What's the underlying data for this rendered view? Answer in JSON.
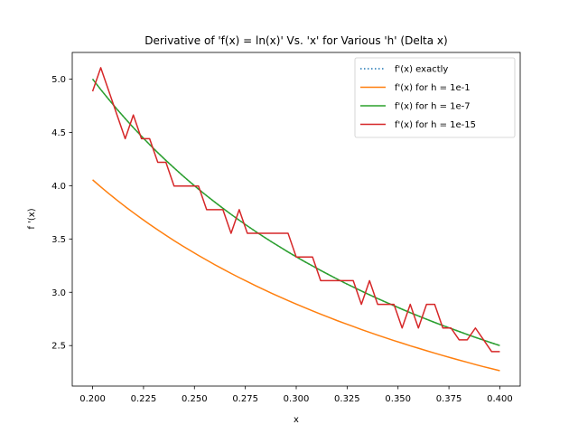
{
  "chart_data": {
    "type": "line",
    "title": "Derivative of 'f(x) = ln(x)' Vs. 'x' for Various 'h' (Delta x)",
    "xlabel": "x",
    "ylabel": "f '(x)",
    "xlim": [
      0.19,
      0.41
    ],
    "ylim": [
      2.12,
      5.25
    ],
    "xticks": [
      0.2,
      0.225,
      0.25,
      0.275,
      0.3,
      0.325,
      0.35,
      0.375,
      0.4
    ],
    "xtick_labels": [
      "0.200",
      "0.225",
      "0.250",
      "0.275",
      "0.300",
      "0.325",
      "0.350",
      "0.375",
      "0.400"
    ],
    "yticks": [
      2.5,
      3.0,
      3.5,
      4.0,
      4.5,
      5.0
    ],
    "ytick_labels": [
      "2.5",
      "3.0",
      "3.5",
      "4.0",
      "4.5",
      "5.0"
    ],
    "grid": false,
    "legend_position": "top-right",
    "series": [
      {
        "name": "f'(x) exactly",
        "color": "#1f77b4",
        "style": "dotted",
        "x": [
          0.2,
          0.204,
          0.208,
          0.212,
          0.216,
          0.22,
          0.224,
          0.228,
          0.232,
          0.236,
          0.24,
          0.244,
          0.248,
          0.252,
          0.256,
          0.26,
          0.264,
          0.268,
          0.272,
          0.276,
          0.28,
          0.284,
          0.288,
          0.292,
          0.296,
          0.3,
          0.304,
          0.308,
          0.312,
          0.316,
          0.32,
          0.324,
          0.328,
          0.332,
          0.336,
          0.34,
          0.344,
          0.348,
          0.352,
          0.356,
          0.36,
          0.364,
          0.368,
          0.372,
          0.376,
          0.38,
          0.384,
          0.388,
          0.392,
          0.396,
          0.4
        ],
        "y": [
          5.0,
          4.902,
          4.808,
          4.717,
          4.63,
          4.545,
          4.464,
          4.386,
          4.31,
          4.237,
          4.167,
          4.098,
          4.032,
          3.968,
          3.906,
          3.846,
          3.788,
          3.731,
          3.676,
          3.623,
          3.571,
          3.521,
          3.472,
          3.425,
          3.378,
          3.333,
          3.289,
          3.247,
          3.205,
          3.165,
          3.125,
          3.086,
          3.049,
          3.012,
          2.976,
          2.941,
          2.907,
          2.874,
          2.841,
          2.809,
          2.778,
          2.747,
          2.717,
          2.688,
          2.66,
          2.632,
          2.604,
          2.577,
          2.551,
          2.525,
          2.5
        ]
      },
      {
        "name": "f'(x) for h = 1e-1",
        "color": "#ff7f0e",
        "style": "solid",
        "x": [
          0.2,
          0.204,
          0.208,
          0.212,
          0.216,
          0.22,
          0.224,
          0.228,
          0.232,
          0.236,
          0.24,
          0.244,
          0.248,
          0.252,
          0.256,
          0.26,
          0.264,
          0.268,
          0.272,
          0.276,
          0.28,
          0.284,
          0.288,
          0.292,
          0.296,
          0.3,
          0.304,
          0.308,
          0.312,
          0.316,
          0.32,
          0.324,
          0.328,
          0.332,
          0.336,
          0.34,
          0.344,
          0.348,
          0.352,
          0.356,
          0.36,
          0.364,
          0.368,
          0.372,
          0.376,
          0.38,
          0.384,
          0.388,
          0.392,
          0.396,
          0.4
        ],
        "y": [
          4.055,
          3.989,
          3.925,
          3.864,
          3.804,
          3.747,
          3.691,
          3.637,
          3.585,
          3.534,
          3.485,
          3.437,
          3.391,
          3.346,
          3.302,
          3.259,
          3.218,
          3.177,
          3.138,
          3.1,
          3.062,
          3.026,
          2.99,
          2.956,
          2.922,
          2.889,
          2.857,
          2.826,
          2.795,
          2.765,
          2.735,
          2.707,
          2.679,
          2.651,
          2.624,
          2.598,
          2.572,
          2.547,
          2.523,
          2.498,
          2.475,
          2.452,
          2.429,
          2.407,
          2.385,
          2.364,
          2.343,
          2.322,
          2.302,
          2.283,
          2.264
        ]
      },
      {
        "name": "f'(x) for h = 1e-7",
        "color": "#2ca02c",
        "style": "solid",
        "x": [
          0.2,
          0.204,
          0.208,
          0.212,
          0.216,
          0.22,
          0.224,
          0.228,
          0.232,
          0.236,
          0.24,
          0.244,
          0.248,
          0.252,
          0.256,
          0.26,
          0.264,
          0.268,
          0.272,
          0.276,
          0.28,
          0.284,
          0.288,
          0.292,
          0.296,
          0.3,
          0.304,
          0.308,
          0.312,
          0.316,
          0.32,
          0.324,
          0.328,
          0.332,
          0.336,
          0.34,
          0.344,
          0.348,
          0.352,
          0.356,
          0.36,
          0.364,
          0.368,
          0.372,
          0.376,
          0.38,
          0.384,
          0.388,
          0.392,
          0.396,
          0.4
        ],
        "y": [
          5.0,
          4.902,
          4.808,
          4.717,
          4.63,
          4.545,
          4.464,
          4.386,
          4.31,
          4.237,
          4.167,
          4.098,
          4.032,
          3.968,
          3.906,
          3.846,
          3.788,
          3.731,
          3.676,
          3.623,
          3.571,
          3.521,
          3.472,
          3.425,
          3.378,
          3.333,
          3.289,
          3.247,
          3.205,
          3.165,
          3.125,
          3.086,
          3.049,
          3.012,
          2.976,
          2.941,
          2.907,
          2.874,
          2.841,
          2.809,
          2.778,
          2.747,
          2.717,
          2.688,
          2.66,
          2.632,
          2.604,
          2.577,
          2.551,
          2.525,
          2.5
        ]
      },
      {
        "name": "f'(x) for h = 1e-15",
        "color": "#d62728",
        "style": "solid",
        "x": [
          0.2,
          0.204,
          0.208,
          0.212,
          0.216,
          0.22,
          0.224,
          0.228,
          0.232,
          0.236,
          0.24,
          0.244,
          0.248,
          0.252,
          0.256,
          0.26,
          0.264,
          0.268,
          0.272,
          0.276,
          0.28,
          0.284,
          0.288,
          0.292,
          0.296,
          0.3,
          0.304,
          0.308,
          0.312,
          0.316,
          0.32,
          0.324,
          0.328,
          0.332,
          0.336,
          0.34,
          0.344,
          0.348,
          0.352,
          0.356,
          0.36,
          0.364,
          0.368,
          0.372,
          0.376,
          0.38,
          0.384,
          0.388,
          0.392,
          0.396,
          0.4
        ],
        "y": [
          4.885,
          5.107,
          4.885,
          4.663,
          4.441,
          4.663,
          4.441,
          4.441,
          4.219,
          4.219,
          3.997,
          3.997,
          3.997,
          3.997,
          3.775,
          3.775,
          3.775,
          3.553,
          3.775,
          3.553,
          3.553,
          3.553,
          3.553,
          3.553,
          3.553,
          3.331,
          3.331,
          3.331,
          3.109,
          3.109,
          3.109,
          3.109,
          3.109,
          2.887,
          3.109,
          2.887,
          2.887,
          2.887,
          2.665,
          2.887,
          2.665,
          2.887,
          2.887,
          2.665,
          2.665,
          2.554,
          2.554,
          2.665,
          2.554,
          2.443,
          2.443
        ]
      }
    ]
  }
}
